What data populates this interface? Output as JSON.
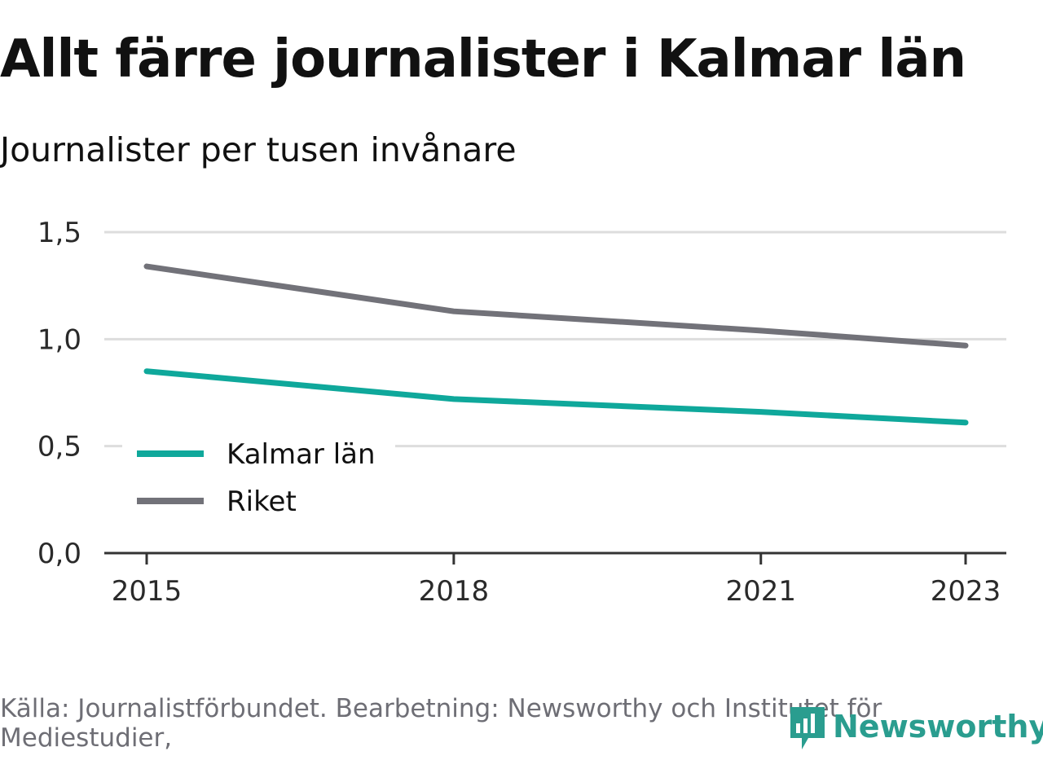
{
  "title": "Allt färre journalister i Kalmar län",
  "subtitle": "Journalister per tusen invånare",
  "source": "Källa: Journalistförbundet. Bearbetning: Newsworthy och Institutet för Mediestudier,",
  "logo": {
    "text": "Newsworthy",
    "icon": "newsworthy-logo-icon"
  },
  "colors": {
    "kalmar": "#0fa89b",
    "riket": "#727279",
    "grid": "#dddddd",
    "axis": "#333333",
    "brand": "#2a9d8f"
  },
  "chart_data": {
    "type": "line",
    "x": [
      2015,
      2018,
      2021,
      2023
    ],
    "xticks": [
      "2015",
      "2018",
      "2021",
      "2023"
    ],
    "yticks": [
      "0,0",
      "0,5",
      "1,0",
      "1,5"
    ],
    "ylim": [
      0,
      1.5
    ],
    "xlim": [
      2015,
      2023
    ],
    "grid": true,
    "legend_position": "bottom-left",
    "series": [
      {
        "name": "Kalmar län",
        "values": [
          0.85,
          0.72,
          0.66,
          0.61
        ]
      },
      {
        "name": "Riket",
        "values": [
          1.34,
          1.13,
          1.04,
          0.97
        ]
      }
    ]
  }
}
